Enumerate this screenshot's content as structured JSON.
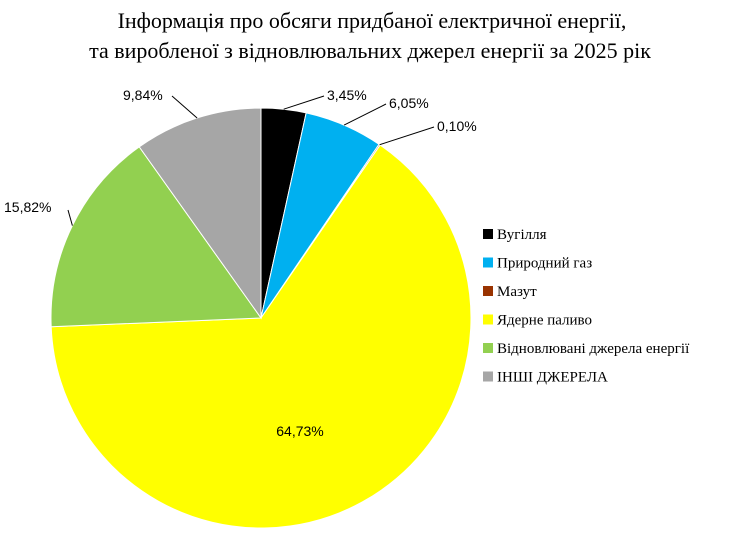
{
  "chart_data": {
    "type": "pie",
    "title": [
      "Інформація про обсяги придбаної електричної енергії,",
      "та виробленої з відновлювальних джерел енергії за 2025 рік"
    ],
    "categories": [
      "Вугілля",
      "Природний газ",
      "Мазут",
      "Ядерне паливо",
      "Відновлювані джерела енергії",
      "ІНШІ ДЖЕРЕЛА"
    ],
    "values": [
      3.45,
      6.05,
      0.1,
      64.73,
      15.82,
      9.84
    ],
    "data_labels": [
      "3,45%",
      "6,05%",
      "0,10%",
      "64,73%",
      "15,82%",
      "9,84%"
    ],
    "colors": [
      "#000000",
      "#00B0F0",
      "#993300",
      "#FFFF00",
      "#92D050",
      "#A6A6A6"
    ],
    "start_angle_deg": 0,
    "direction": "clockwise",
    "legend": "right"
  }
}
